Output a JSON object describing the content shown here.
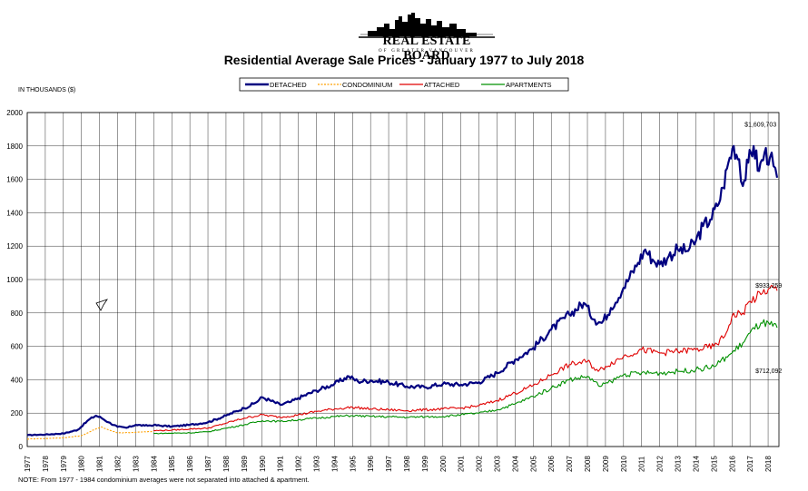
{
  "header": {
    "logo_main": "REAL ESTATE BOARD",
    "logo_sub": "OF GREATER VANCOUVER",
    "title": "Residential Average Sale Prices  -  January 1977 to July 2018"
  },
  "units_label": "IN THOUSANDS ($)",
  "note": "NOTE:  From 1977 - 1984 condominium averages were not separated into attached & apartment.",
  "chart_data": {
    "type": "line",
    "title": "Residential Average Sale Prices  -  January 1977 to July 2018",
    "ylabel": "IN THOUSANDS ($)",
    "ylim": [
      0,
      2000
    ],
    "yticks": [
      0,
      200,
      400,
      600,
      800,
      1000,
      1200,
      1400,
      1600,
      1800,
      2000
    ],
    "xlim": [
      1977,
      2018.6
    ],
    "xticks": [
      "1977",
      "1978",
      "1979",
      "1980",
      "1981",
      "1982",
      "1983",
      "1984",
      "1985",
      "1986",
      "1987",
      "1988",
      "1989",
      "1990",
      "1991",
      "1992",
      "1993",
      "1994",
      "1995",
      "1996",
      "1997",
      "1998",
      "1999",
      "2000",
      "2001",
      "2002",
      "2003",
      "2004",
      "2005",
      "2006",
      "2007",
      "2008",
      "2009",
      "2010",
      "2011",
      "2012",
      "2013",
      "2014",
      "2015",
      "2016",
      "2017",
      "2018"
    ],
    "grid": true,
    "legend_placement": "top-center",
    "series": [
      {
        "name": "DETACHED",
        "color": "#000080",
        "style": "solid",
        "x": [
          1977,
          1978,
          1979,
          1979.8,
          1980.4,
          1980.8,
          1981.1,
          1981.5,
          1982,
          1982.5,
          1983,
          1983.5,
          1984,
          1985,
          1986,
          1987,
          1988,
          1989,
          1989.6,
          1990,
          1991,
          1991.6,
          1992,
          1993,
          1994,
          1994.8,
          1995.3,
          1996,
          1997,
          1998,
          1999,
          2000,
          2001,
          2002,
          2003,
          2004,
          2005,
          2006,
          2007,
          2007.8,
          2008.4,
          2008.8,
          2009.3,
          2010,
          2010.8,
          2011.2,
          2011.6,
          2012,
          2012.5,
          2013,
          2013.5,
          2014,
          2014.4,
          2014.8,
          2015.2,
          2015.5,
          2015.8,
          2016.1,
          2016.4,
          2016.6,
          2016.9,
          2017.2,
          2017.5,
          2017.8,
          2018.1,
          2018.3,
          2018.5
        ],
        "y": [
          68,
          72,
          78,
          100,
          160,
          185,
          172,
          145,
          118,
          112,
          130,
          125,
          128,
          120,
          130,
          145,
          185,
          230,
          260,
          295,
          250,
          268,
          290,
          335,
          375,
          420,
          390,
          395,
          385,
          360,
          355,
          375,
          370,
          385,
          440,
          520,
          590,
          700,
          790,
          860,
          760,
          740,
          830,
          950,
          1100,
          1180,
          1120,
          1090,
          1140,
          1180,
          1170,
          1230,
          1320,
          1360,
          1440,
          1550,
          1700,
          1800,
          1720,
          1560,
          1700,
          1800,
          1650,
          1760,
          1730,
          1680,
          1609.7
        ]
      },
      {
        "name": "CONDOMINIUM",
        "color": "#ffa000",
        "style": "dashed",
        "x": [
          1977,
          1978,
          1979,
          1980,
          1980.7,
          1981.1,
          1981.5,
          1982,
          1983,
          1984
        ],
        "y": [
          45,
          48,
          52,
          65,
          100,
          118,
          100,
          82,
          85,
          90
        ]
      },
      {
        "name": "ATTACHED",
        "color": "#e00000",
        "style": "solid",
        "x": [
          1984,
          1985,
          1986,
          1987,
          1988,
          1989,
          1990,
          1991,
          1992,
          1993,
          1994,
          1995,
          1996,
          1997,
          1998,
          1999,
          2000,
          2001,
          2002,
          2003,
          2004,
          2005,
          2006,
          2007,
          2008,
          2008.6,
          2009,
          2010,
          2011,
          2012,
          2013,
          2014,
          2015,
          2015.6,
          2016,
          2016.6,
          2017,
          2017.6,
          2018.1,
          2018.5
        ],
        "y": [
          95,
          98,
          105,
          110,
          140,
          170,
          190,
          175,
          190,
          210,
          225,
          235,
          225,
          220,
          215,
          220,
          225,
          230,
          245,
          275,
          320,
          365,
          430,
          490,
          510,
          450,
          480,
          540,
          580,
          560,
          570,
          580,
          600,
          660,
          780,
          800,
          870,
          910,
          950,
          933.3
        ]
      },
      {
        "name": "APARTMENTS",
        "color": "#009000",
        "style": "solid",
        "x": [
          1984,
          1985,
          1986,
          1987,
          1988,
          1989,
          1990,
          1991,
          1992,
          1993,
          1994,
          1995,
          1996,
          1997,
          1998,
          1999,
          2000,
          2001,
          2002,
          2003,
          2004,
          2005,
          2006,
          2007,
          2008,
          2008.7,
          2009.3,
          2010,
          2011,
          2012,
          2013,
          2014,
          2015,
          2016,
          2016.6,
          2017,
          2017.6,
          2018.1,
          2018.5
        ],
        "y": [
          78,
          80,
          82,
          88,
          110,
          130,
          155,
          150,
          160,
          170,
          180,
          185,
          180,
          178,
          175,
          178,
          180,
          190,
          200,
          220,
          255,
          300,
          350,
          400,
          420,
          360,
          390,
          430,
          440,
          440,
          450,
          460,
          480,
          560,
          620,
          680,
          740,
          730,
          712.1
        ]
      }
    ],
    "annotations": [
      {
        "text": "$1,609,703",
        "x": 2016.7,
        "y": 1915
      },
      {
        "text": "$933,259",
        "x": 2017.3,
        "y": 950
      },
      {
        "text": "$712,092",
        "x": 2017.3,
        "y": 440
      }
    ]
  }
}
